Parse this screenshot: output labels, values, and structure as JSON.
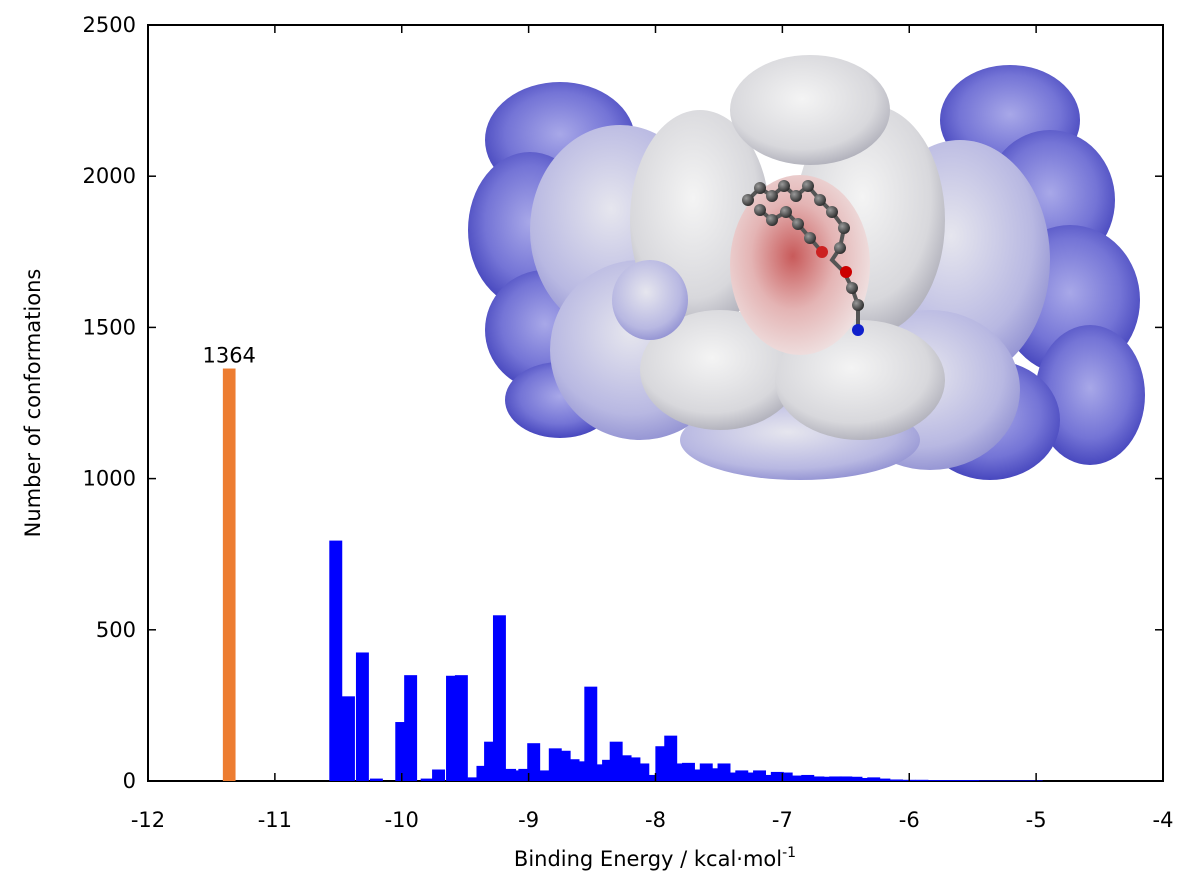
{
  "chart_data": {
    "type": "bar",
    "title": "",
    "xlabel": "Binding Energy / kcal·mol",
    "xlabel_superscript": "-1",
    "ylabel": "Number of conformations",
    "xlim": [
      -12,
      -4
    ],
    "ylim": [
      0,
      2500
    ],
    "x_ticks": [
      -12,
      -11,
      -10,
      -9,
      -8,
      -7,
      -6,
      -5,
      -4
    ],
    "y_ticks": [
      0,
      500,
      1000,
      1500,
      2000,
      2500
    ],
    "bin_width": 0.1,
    "grid": false,
    "colors": {
      "highlight": "#ed7d31",
      "series": "#0000ff"
    },
    "highlight_bar": {
      "x": -11.36,
      "value": 1364,
      "label": "1364"
    },
    "series": [
      {
        "values_xy": [
          [
            -10.52,
            795
          ],
          [
            -10.42,
            280
          ],
          [
            -10.31,
            425
          ],
          [
            -10.2,
            8
          ],
          [
            -10.0,
            195
          ],
          [
            -9.93,
            350
          ],
          [
            -9.8,
            8
          ],
          [
            -9.71,
            38
          ],
          [
            -9.6,
            348
          ],
          [
            -9.53,
            350
          ],
          [
            -9.43,
            12
          ],
          [
            -9.36,
            50
          ],
          [
            -9.3,
            130
          ],
          [
            -9.23,
            548
          ],
          [
            -9.15,
            40
          ],
          [
            -9.08,
            35
          ],
          [
            -9.03,
            40
          ],
          [
            -8.96,
            125
          ],
          [
            -8.86,
            35
          ],
          [
            -8.79,
            108
          ],
          [
            -8.72,
            100
          ],
          [
            -8.65,
            72
          ],
          [
            -8.58,
            65
          ],
          [
            -8.51,
            312
          ],
          [
            -8.44,
            55
          ],
          [
            -8.37,
            70
          ],
          [
            -8.31,
            130
          ],
          [
            -8.24,
            85
          ],
          [
            -8.17,
            78
          ],
          [
            -8.1,
            58
          ],
          [
            -8.03,
            20
          ],
          [
            -7.95,
            115
          ],
          [
            -7.88,
            150
          ],
          [
            -7.81,
            58
          ],
          [
            -7.74,
            60
          ],
          [
            -7.67,
            38
          ],
          [
            -7.6,
            58
          ],
          [
            -7.53,
            42
          ],
          [
            -7.46,
            58
          ],
          [
            -7.39,
            28
          ],
          [
            -7.32,
            35
          ],
          [
            -7.25,
            28
          ],
          [
            -7.18,
            35
          ],
          [
            -7.11,
            20
          ],
          [
            -7.04,
            30
          ],
          [
            -6.97,
            28
          ],
          [
            -6.9,
            18
          ],
          [
            -6.8,
            20
          ],
          [
            -6.72,
            15
          ],
          [
            -6.65,
            14
          ],
          [
            -6.58,
            15
          ],
          [
            -6.5,
            15
          ],
          [
            -6.42,
            14
          ],
          [
            -6.35,
            10
          ],
          [
            -6.28,
            12
          ],
          [
            -6.2,
            8
          ],
          [
            -6.1,
            5
          ],
          [
            -6.0,
            4
          ],
          [
            -5.9,
            4
          ],
          [
            -5.8,
            3
          ],
          [
            -5.7,
            3
          ],
          [
            -5.6,
            3
          ],
          [
            -5.5,
            3
          ],
          [
            -5.4,
            2
          ],
          [
            -5.3,
            2
          ],
          [
            -5.2,
            2
          ],
          [
            -5.1,
            2
          ],
          [
            -5.0,
            2
          ]
        ]
      }
    ]
  },
  "inset": {
    "colors": {
      "surface_blue": "#5a5ad0",
      "surface_light": "#b4b4e6",
      "surface_white": "#e6e6e6",
      "pocket_red": "#e8a0a0",
      "ligand_carbon": "#3c3c3c",
      "ligand_oxygen": "#cc0000",
      "ligand_nitrogen": "#0000cc"
    }
  }
}
